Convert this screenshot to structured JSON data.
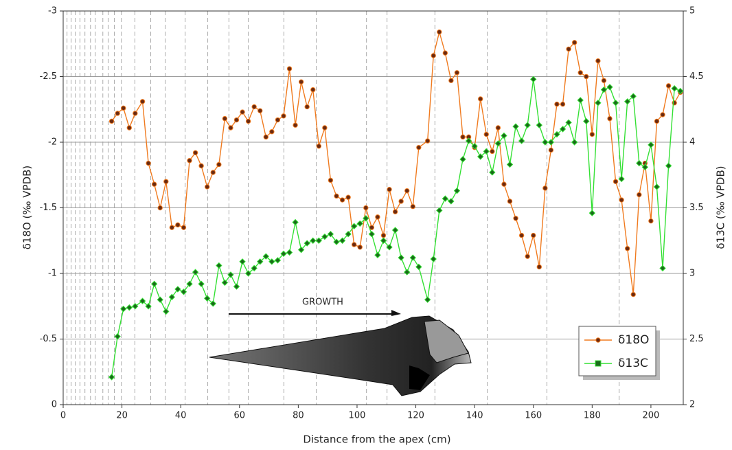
{
  "chart_data": {
    "type": "line",
    "x_label": "Distance from the apex (cm)",
    "y_label": "δ18O (‰ VPDB)",
    "y2_label": "δ13C (‰ VPDB)",
    "annotation": "GROWTH",
    "xlim": [
      0,
      211
    ],
    "xticks": [
      0,
      20,
      40,
      60,
      80,
      100,
      120,
      140,
      160,
      180,
      200
    ],
    "ylim": [
      0,
      -3
    ],
    "yticks": [
      0,
      -0.5,
      -1,
      -1.5,
      -2,
      -2.5,
      -3
    ],
    "y2lim": [
      2,
      5
    ],
    "y2ticks": [
      2,
      2.5,
      3,
      3.5,
      4,
      4.5,
      5
    ],
    "grid": true,
    "legend": "lower right",
    "dashed_lines": [
      1.3,
      2.7,
      4.1,
      5.7,
      7.4,
      9.3,
      10.9,
      13.5,
      15.3,
      17.4,
      19.8,
      24.4,
      29.8,
      34.7,
      41.5,
      49.2,
      56.4,
      63.0,
      75.1,
      86.1,
      103.2,
      110.2,
      126.5,
      144.3,
      164.6,
      189.2
    ],
    "x": [
      16.5,
      18.5,
      20.5,
      22.5,
      24.5,
      27,
      29,
      31,
      33,
      35,
      37,
      39,
      41,
      43,
      45,
      47,
      49,
      51,
      53,
      55,
      57,
      59,
      61,
      63,
      65,
      67,
      69,
      71,
      73,
      75,
      77,
      79,
      81,
      83,
      85,
      87,
      89,
      91,
      93,
      95,
      97,
      99,
      101,
      103,
      105,
      107,
      109,
      111,
      113,
      115,
      117,
      119,
      121,
      124,
      126,
      128,
      130,
      132,
      134,
      136,
      138,
      140,
      142,
      144,
      146,
      148,
      150,
      152,
      154,
      156,
      158,
      160,
      162,
      164,
      166,
      168,
      170,
      172,
      174,
      176,
      178,
      180,
      182,
      184,
      186,
      188,
      190,
      192,
      194,
      196,
      198,
      200,
      202,
      204,
      206,
      208,
      210
    ],
    "series": [
      {
        "name": "δ18O",
        "color": "#f07a1e",
        "marker_color": "#6b2a10",
        "marker": "circle",
        "values": [
          -2.16,
          -2.22,
          -2.26,
          -2.11,
          -2.22,
          -2.31,
          -1.84,
          -1.68,
          -1.5,
          -1.7,
          -1.35,
          -1.37,
          -1.35,
          -1.86,
          -1.92,
          -1.82,
          -1.66,
          -1.77,
          -1.83,
          -2.18,
          -2.11,
          -2.17,
          -2.23,
          -2.16,
          -2.27,
          -2.24,
          -2.04,
          -2.08,
          -2.17,
          -2.2,
          -2.56,
          -2.13,
          -2.46,
          -2.27,
          -2.4,
          -1.97,
          -2.11,
          -1.71,
          -1.59,
          -1.56,
          -1.58,
          -1.22,
          -1.2,
          -1.5,
          -1.35,
          -1.43,
          -1.29,
          -1.64,
          -1.47,
          -1.55,
          -1.63,
          -1.51,
          -1.96,
          -2.01,
          -2.66,
          -2.84,
          -2.68,
          -2.47,
          -2.53,
          -2.04,
          -2.04,
          -1.96,
          -2.33,
          -2.06,
          -1.93,
          -2.11,
          -1.68,
          -1.55,
          -1.42,
          -1.29,
          -1.13,
          -1.29,
          -1.05,
          -1.65,
          -1.94,
          -2.29,
          -2.29,
          -2.71,
          -2.76,
          -2.53,
          -2.5,
          -2.06,
          -2.62,
          -2.47,
          -2.18,
          -1.7,
          -1.56,
          -1.19,
          -0.84,
          -1.6,
          -1.84,
          -1.4,
          -2.16,
          -2.21,
          -2.43,
          -2.3,
          -2.38
        ]
      },
      {
        "name": "δ13C",
        "color": "#33e033",
        "marker_color": "#1b6b1b",
        "marker": "diamond",
        "axis": "y2",
        "values": [
          2.21,
          2.52,
          2.73,
          2.74,
          2.75,
          2.79,
          2.75,
          2.92,
          2.8,
          2.71,
          2.82,
          2.88,
          2.86,
          2.92,
          3.01,
          2.92,
          2.81,
          2.77,
          3.06,
          2.93,
          2.99,
          2.9,
          3.09,
          3.0,
          3.04,
          3.09,
          3.13,
          3.09,
          3.1,
          3.15,
          3.16,
          3.39,
          3.18,
          3.23,
          3.25,
          3.25,
          3.28,
          3.3,
          3.24,
          3.25,
          3.3,
          3.36,
          3.38,
          3.42,
          3.3,
          3.14,
          3.25,
          3.2,
          3.33,
          3.12,
          3.01,
          3.12,
          3.05,
          2.8,
          3.11,
          3.48,
          3.57,
          3.55,
          3.63,
          3.87,
          4.01,
          3.97,
          3.89,
          3.93,
          3.77,
          3.99,
          4.05,
          3.83,
          4.12,
          4.01,
          4.13,
          4.48,
          4.13,
          4.0,
          4.0,
          4.06,
          4.1,
          4.15,
          4.0,
          4.32,
          4.16,
          3.46,
          4.3,
          4.4,
          4.42,
          4.3,
          3.72,
          4.31,
          4.35,
          3.84,
          3.81,
          3.98,
          3.66,
          3.04,
          3.82,
          4.41,
          4.39
        ]
      }
    ]
  }
}
